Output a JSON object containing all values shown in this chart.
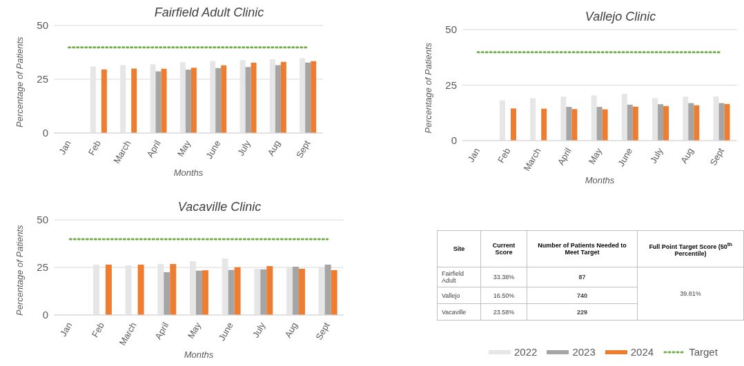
{
  "chart_data": [
    {
      "type": "bar",
      "title": "Fairfield Adult Clinic",
      "xlabel": "Months",
      "ylabel": "Percentage of Patients",
      "categories": [
        "Jan",
        "Feb",
        "March",
        "April",
        "May",
        "June",
        "July",
        "Aug",
        "Sept"
      ],
      "ylim": [
        0,
        50
      ],
      "yticks": [
        0,
        25,
        50
      ],
      "grid": "y",
      "legend": false,
      "series": [
        {
          "color": "#e7e6e6",
          "values": [
            null,
            31.0,
            31.6,
            32.0,
            32.9,
            33.5,
            33.9,
            34.3,
            34.8
          ]
        },
        {
          "color": "#a5a5a5",
          "values": [
            null,
            null,
            null,
            28.7,
            29.5,
            30.2,
            30.7,
            31.6,
            32.8
          ]
        },
        {
          "color": "#ed7d31",
          "values": [
            null,
            29.6,
            30.0,
            29.9,
            30.4,
            31.5,
            32.7,
            33.1,
            33.4
          ]
        }
      ],
      "ref_lines": [
        {
          "axis": "y",
          "value": 39.81,
          "color": "#70ad47",
          "line_style": "dotted"
        }
      ]
    },
    {
      "type": "bar",
      "title": "Vallejo Clinic",
      "xlabel": "Months",
      "ylabel": "Percentage of Patients",
      "categories": [
        "Jan",
        "Feb",
        "March",
        "April",
        "May",
        "June",
        "July",
        "Aug",
        "Sept"
      ],
      "ylim": [
        0,
        50
      ],
      "yticks": [
        0,
        25,
        50
      ],
      "grid": "y",
      "legend": false,
      "series": [
        {
          "color": "#e7e6e6",
          "values": [
            null,
            18.1,
            19.1,
            19.8,
            20.4,
            21.1,
            19.1,
            19.8,
            19.9
          ]
        },
        {
          "color": "#a5a5a5",
          "values": [
            null,
            null,
            null,
            15.2,
            15.2,
            16.2,
            16.4,
            16.9,
            16.9
          ]
        },
        {
          "color": "#ed7d31",
          "values": [
            null,
            14.5,
            14.4,
            14.2,
            14.1,
            15.3,
            15.6,
            15.9,
            16.5
          ]
        }
      ],
      "ref_lines": [
        {
          "axis": "y",
          "value": 39.81,
          "color": "#70ad47",
          "line_style": "dotted"
        }
      ]
    },
    {
      "type": "bar",
      "title": "Vacaville Clinic",
      "xlabel": "Months",
      "ylabel": "Percentage of Patients",
      "categories": [
        "Jan",
        "Feb",
        "March",
        "April",
        "May",
        "June",
        "July",
        "Aug",
        "Sept"
      ],
      "ylim": [
        0,
        50
      ],
      "yticks": [
        0,
        25,
        50
      ],
      "grid": "y",
      "legend": "bottom",
      "series": [
        {
          "name": "2022",
          "color": "#e7e6e6",
          "values": [
            null,
            26.5,
            26.1,
            26.8,
            28.3,
            29.7,
            24.3,
            25.4,
            25.4
          ]
        },
        {
          "name": "2023",
          "color": "#a5a5a5",
          "values": [
            null,
            null,
            null,
            22.5,
            23.3,
            23.7,
            24.0,
            25.4,
            26.5
          ]
        },
        {
          "name": "2024",
          "color": "#ed7d31",
          "values": [
            null,
            26.5,
            26.5,
            26.8,
            23.5,
            25.1,
            25.7,
            24.3,
            23.6
          ]
        }
      ],
      "ref_lines": [
        {
          "axis": "y",
          "value": 39.81,
          "label": "Target",
          "color": "#70ad47",
          "line_style": "dotted"
        }
      ]
    },
    {
      "type": "other",
      "categories": [
        "Site",
        "Current Score",
        "Number of Patients Needed to Meet Target",
        "Full Point Target Score (50$^{th}$ Percentile)"
      ],
      "y_categories": [
        "Fairfield Adult",
        "Vallejo",
        "Vacaville"
      ],
      "cell_labels": [
        [
          "33.38%",
          "87",
          "39.81%"
        ],
        [
          "16.50%",
          "740",
          null
        ],
        [
          "23.58%",
          "229",
          null
        ]
      ]
    }
  ]
}
